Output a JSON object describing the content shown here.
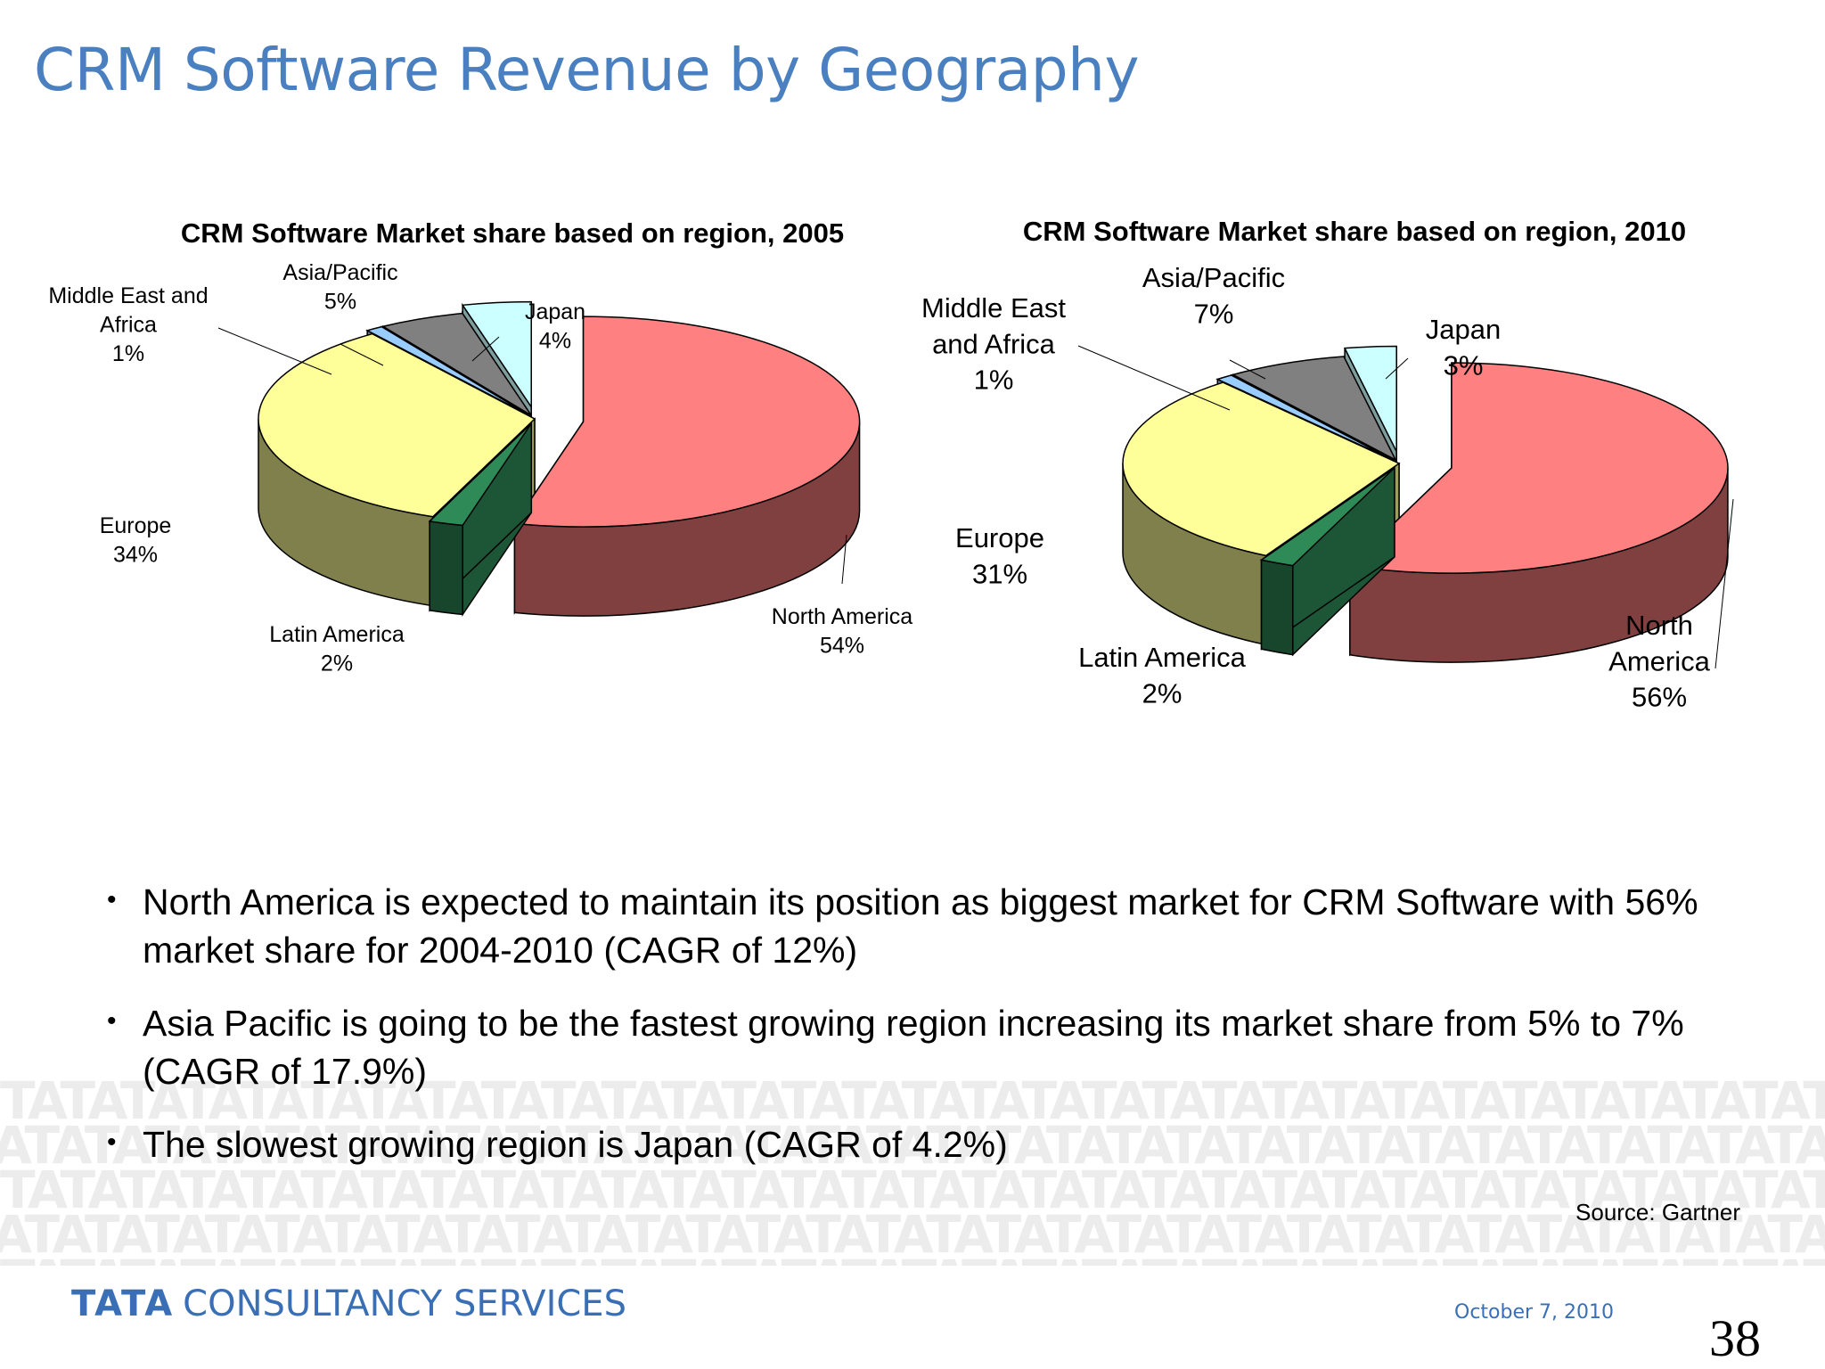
{
  "slide": {
    "title": "CRM Software Revenue by Geography",
    "source": "Source: Gartner",
    "date": "October 7, 2010",
    "page_number": "38",
    "logo": {
      "tata": "TATA",
      "company": "CONSULTANCY SERVICES"
    },
    "watermark_text": "TATA",
    "bullets": [
      "North America is expected to maintain its position as biggest market for CRM Software with 56% market share for 2004-2010 (CAGR of 12%)",
      "Asia Pacific is going to be the fastest growing region increasing its market share from 5% to 7% (CAGR of 17.9%)",
      "The slowest growing region is Japan (CAGR of 4.2%)"
    ]
  },
  "colors": {
    "title_blue": "#4a7fc0",
    "north_america": "#ff8080",
    "latin_america": "#2e8b57",
    "europe": "#ffff99",
    "middle_east_africa": "#99ccff",
    "asia_pacific": "#808080",
    "japan": "#ccffff",
    "eu_me_block": "#4f6f9f"
  },
  "chart_data": [
    {
      "type": "pie",
      "title": "CRM Software Market share based on region, 2005",
      "slices": [
        {
          "label": "North America",
          "value": 54,
          "value_label": "54%",
          "color": "#ff8080"
        },
        {
          "label": "Latin America",
          "value": 2,
          "value_label": "2%",
          "color": "#2e8b57"
        },
        {
          "label": "Europe",
          "value": 34,
          "value_label": "34%",
          "color": "#ffff99"
        },
        {
          "label": "Middle East and Africa",
          "value": 1,
          "value_label": "1%",
          "color": "#99ccff"
        },
        {
          "label": "Asia/Pacific",
          "value": 5,
          "value_label": "5%",
          "color": "#808080"
        },
        {
          "label": "Japan",
          "value": 4,
          "value_label": "4%",
          "color": "#ccffff"
        }
      ]
    },
    {
      "type": "pie",
      "title": "CRM Software Market share based on region, 2010",
      "slices": [
        {
          "label": "North America",
          "value": 56,
          "value_label": "56%",
          "color": "#ff8080"
        },
        {
          "label": "Latin America",
          "value": 2,
          "value_label": "2%",
          "color": "#2e8b57"
        },
        {
          "label": "Europe",
          "value": 31,
          "value_label": "31%",
          "color": "#ffff99"
        },
        {
          "label": "Middle East and Africa",
          "value": 1,
          "value_label": "1%",
          "color": "#99ccff"
        },
        {
          "label": "Asia/Pacific",
          "value": 7,
          "value_label": "7%",
          "color": "#808080"
        },
        {
          "label": "Japan",
          "value": 3,
          "value_label": "3%",
          "color": "#ccffff"
        }
      ]
    }
  ]
}
